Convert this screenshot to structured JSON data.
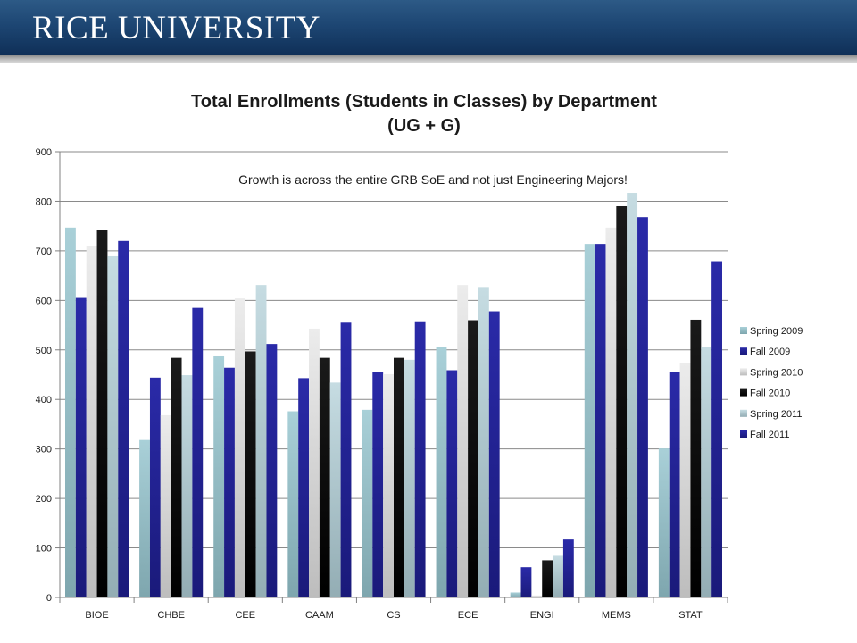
{
  "header": {
    "logo_text": "RICE UNIVERSITY"
  },
  "chart_data": {
    "type": "bar",
    "title": [
      "Total Enrollments (Students in Classes) by Department",
      "(UG + G)"
    ],
    "annotation": "Growth is across the entire GRB SoE and not just Engineering Majors!",
    "categories": [
      "BIOE",
      "CHBE",
      "CEE",
      "CAAM",
      "CS",
      "ECE",
      "ENGI",
      "MEMS",
      "STAT"
    ],
    "ylim": [
      0,
      900
    ],
    "yticks": [
      0,
      100,
      200,
      300,
      400,
      500,
      600,
      700,
      800,
      900
    ],
    "grid": true,
    "legend_position": "right",
    "series": [
      {
        "name": "Spring 2009",
        "color": "#9cc3cb",
        "values": [
          747,
          318,
          487,
          376,
          379,
          505,
          10,
          714,
          301
        ]
      },
      {
        "name": "Fall 2009",
        "color": "#1f1f8f",
        "values": [
          605,
          444,
          464,
          443,
          455,
          459,
          61,
          714,
          456
        ]
      },
      {
        "name": "Spring 2010",
        "color": "#dcdcdc",
        "values": [
          710,
          368,
          604,
          543,
          451,
          631,
          4,
          747,
          473
        ]
      },
      {
        "name": "Fall 2010",
        "color": "#000000",
        "values": [
          743,
          484,
          497,
          484,
          484,
          560,
          75,
          790,
          561
        ]
      },
      {
        "name": "Spring 2011",
        "color": "#b4cdd4",
        "values": [
          689,
          449,
          631,
          434,
          480,
          627,
          84,
          817,
          505
        ]
      },
      {
        "name": "Fall 2011",
        "color": "#1f1f8f",
        "values": [
          720,
          585,
          512,
          555,
          556,
          578,
          117,
          768,
          679
        ]
      }
    ]
  }
}
